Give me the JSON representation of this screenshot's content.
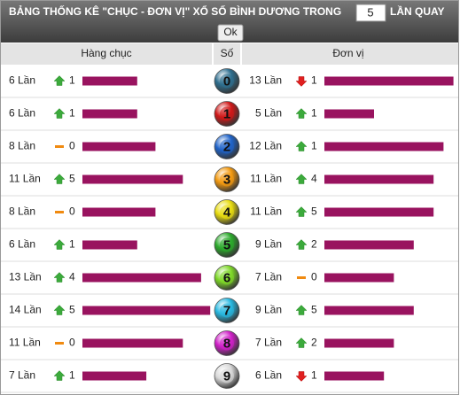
{
  "header": {
    "title": "BẢNG THỐNG KÊ \"CHỤC - ĐƠN VỊ\" XỔ SỐ BÌNH DƯƠNG TRONG",
    "input_value": "5",
    "suffix": "LẦN QUAY",
    "button": "Ok"
  },
  "columns": {
    "left": "Hàng chục",
    "middle": "Số",
    "right": "Đơn vị"
  },
  "rows": [
    {
      "digit": "0",
      "ball_color": "#2f6f8f",
      "left": {
        "count": 6,
        "count_label": "6 Lần",
        "trend": "up",
        "change": "1"
      },
      "right": {
        "count": 13,
        "count_label": "13 Lần",
        "trend": "down",
        "change": "1"
      }
    },
    {
      "digit": "1",
      "ball_color": "#d01818",
      "left": {
        "count": 6,
        "count_label": "6 Lần",
        "trend": "up",
        "change": "1"
      },
      "right": {
        "count": 5,
        "count_label": "5 Lần",
        "trend": "up",
        "change": "1"
      }
    },
    {
      "digit": "2",
      "ball_color": "#1f63c8",
      "left": {
        "count": 8,
        "count_label": "8 Lần",
        "trend": "flat",
        "change": "0"
      },
      "right": {
        "count": 12,
        "count_label": "12 Lần",
        "trend": "up",
        "change": "1"
      }
    },
    {
      "digit": "3",
      "ball_color": "#f39a10",
      "left": {
        "count": 11,
        "count_label": "11 Lần",
        "trend": "up",
        "change": "5"
      },
      "right": {
        "count": 11,
        "count_label": "11 Lần",
        "trend": "up",
        "change": "4"
      }
    },
    {
      "digit": "4",
      "ball_color": "#e8dc10",
      "left": {
        "count": 8,
        "count_label": "8 Lần",
        "trend": "flat",
        "change": "0"
      },
      "right": {
        "count": 11,
        "count_label": "11 Lần",
        "trend": "up",
        "change": "5"
      }
    },
    {
      "digit": "5",
      "ball_color": "#2caa2c",
      "left": {
        "count": 6,
        "count_label": "6 Lần",
        "trend": "up",
        "change": "1"
      },
      "right": {
        "count": 9,
        "count_label": "9 Lần",
        "trend": "up",
        "change": "2"
      }
    },
    {
      "digit": "6",
      "ball_color": "#7ed828",
      "left": {
        "count": 13,
        "count_label": "13 Lần",
        "trend": "up",
        "change": "4"
      },
      "right": {
        "count": 7,
        "count_label": "7 Lần",
        "trend": "flat",
        "change": "0"
      }
    },
    {
      "digit": "7",
      "ball_color": "#28b8e0",
      "left": {
        "count": 14,
        "count_label": "14 Lần",
        "trend": "up",
        "change": "5"
      },
      "right": {
        "count": 9,
        "count_label": "9 Lần",
        "trend": "up",
        "change": "5"
      }
    },
    {
      "digit": "8",
      "ball_color": "#d020c8",
      "left": {
        "count": 11,
        "count_label": "11 Lần",
        "trend": "flat",
        "change": "0"
      },
      "right": {
        "count": 7,
        "count_label": "7 Lần",
        "trend": "up",
        "change": "2"
      }
    },
    {
      "digit": "9",
      "ball_color": "#d8d8d8",
      "left": {
        "count": 7,
        "count_label": "7 Lần",
        "trend": "up",
        "change": "1"
      },
      "right": {
        "count": 6,
        "count_label": "6 Lần",
        "trend": "down",
        "change": "1"
      }
    }
  ]
}
